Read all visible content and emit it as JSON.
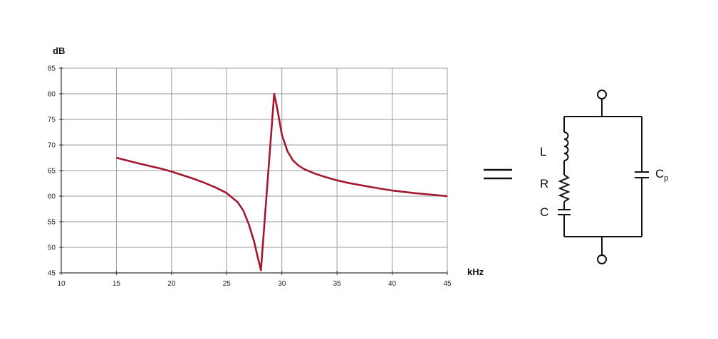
{
  "chart_data": {
    "type": "line",
    "title": "",
    "xlabel": "kHz",
    "ylabel": "dB",
    "xlim": [
      10,
      45
    ],
    "ylim": [
      45,
      85
    ],
    "xticks": [
      10,
      15,
      20,
      25,
      30,
      35,
      40,
      45
    ],
    "yticks": [
      45,
      50,
      55,
      60,
      65,
      70,
      75,
      80,
      85
    ],
    "grid": true,
    "legend": "none",
    "series": [
      {
        "color": "#a3182f",
        "x": [
          15,
          17,
          19,
          20,
          21,
          22,
          23,
          24,
          25,
          26,
          26.5,
          27,
          27.5,
          27.8,
          28,
          28.1,
          29.3,
          29.5,
          29.8,
          30,
          30.5,
          31,
          31.5,
          32,
          33,
          34,
          35,
          36,
          38,
          40,
          42,
          45
        ],
        "y": [
          67.5,
          66.4,
          65.4,
          64.8,
          64.1,
          63.4,
          62.6,
          61.7,
          60.6,
          58.8,
          57.2,
          54.5,
          51.0,
          48.2,
          46.5,
          45.5,
          80,
          78.0,
          74.5,
          72.0,
          68.8,
          67.0,
          66.0,
          65.3,
          64.4,
          63.7,
          63.1,
          62.6,
          61.8,
          61.1,
          60.6,
          60.0
        ]
      }
    ]
  },
  "equals_symbol": "=",
  "circuit": {
    "inductor_label": "L",
    "resistor_label": "R",
    "capacitor_label": "C",
    "parallel_capacitor_label": "C",
    "parallel_capacitor_subscript": "p"
  }
}
